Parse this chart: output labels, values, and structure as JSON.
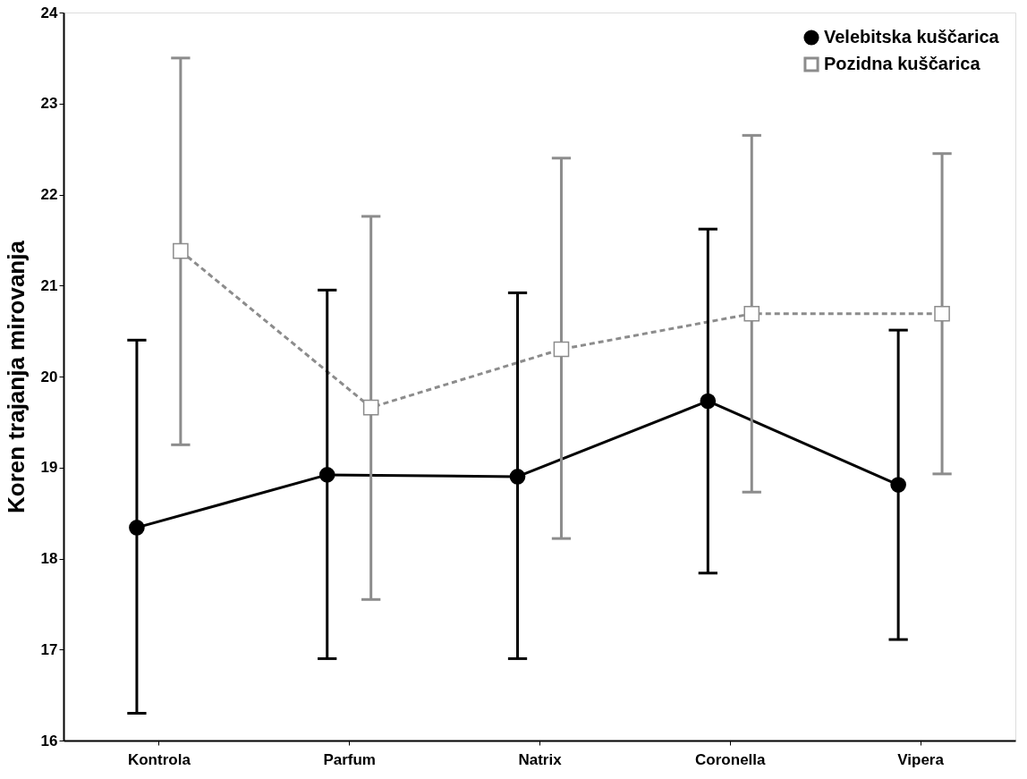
{
  "chart_data": {
    "type": "line",
    "ylabel": "Koren trajanja mirovanja",
    "categories": [
      "Kontrola",
      "Parfum",
      "Natrix",
      "Coronella",
      "Vipera"
    ],
    "ylim": [
      16,
      24
    ],
    "yticks": [
      16,
      17,
      18,
      19,
      20,
      21,
      22,
      23,
      24
    ],
    "grid": false,
    "legend": "top right",
    "series": [
      {
        "name": "Velebitska kuščarica",
        "color": "#000000",
        "marker": "circle",
        "line_style": "solid",
        "values": [
          18.34,
          18.92,
          18.9,
          19.73,
          18.81
        ],
        "errors": [
          [
            16.3,
            20.4
          ],
          [
            16.9,
            20.95
          ],
          [
            16.9,
            20.92
          ],
          [
            17.84,
            21.62
          ],
          [
            17.11,
            20.51
          ]
        ]
      },
      {
        "name": "Pozidna kuščarica",
        "color": "#8c8c8c",
        "marker": "square",
        "line_style": "dashed",
        "values": [
          21.38,
          19.66,
          20.3,
          20.69,
          20.69
        ],
        "errors": [
          [
            19.25,
            23.5
          ],
          [
            17.55,
            21.76
          ],
          [
            18.22,
            22.4
          ],
          [
            18.73,
            22.65
          ],
          [
            18.93,
            22.45
          ]
        ]
      }
    ]
  }
}
